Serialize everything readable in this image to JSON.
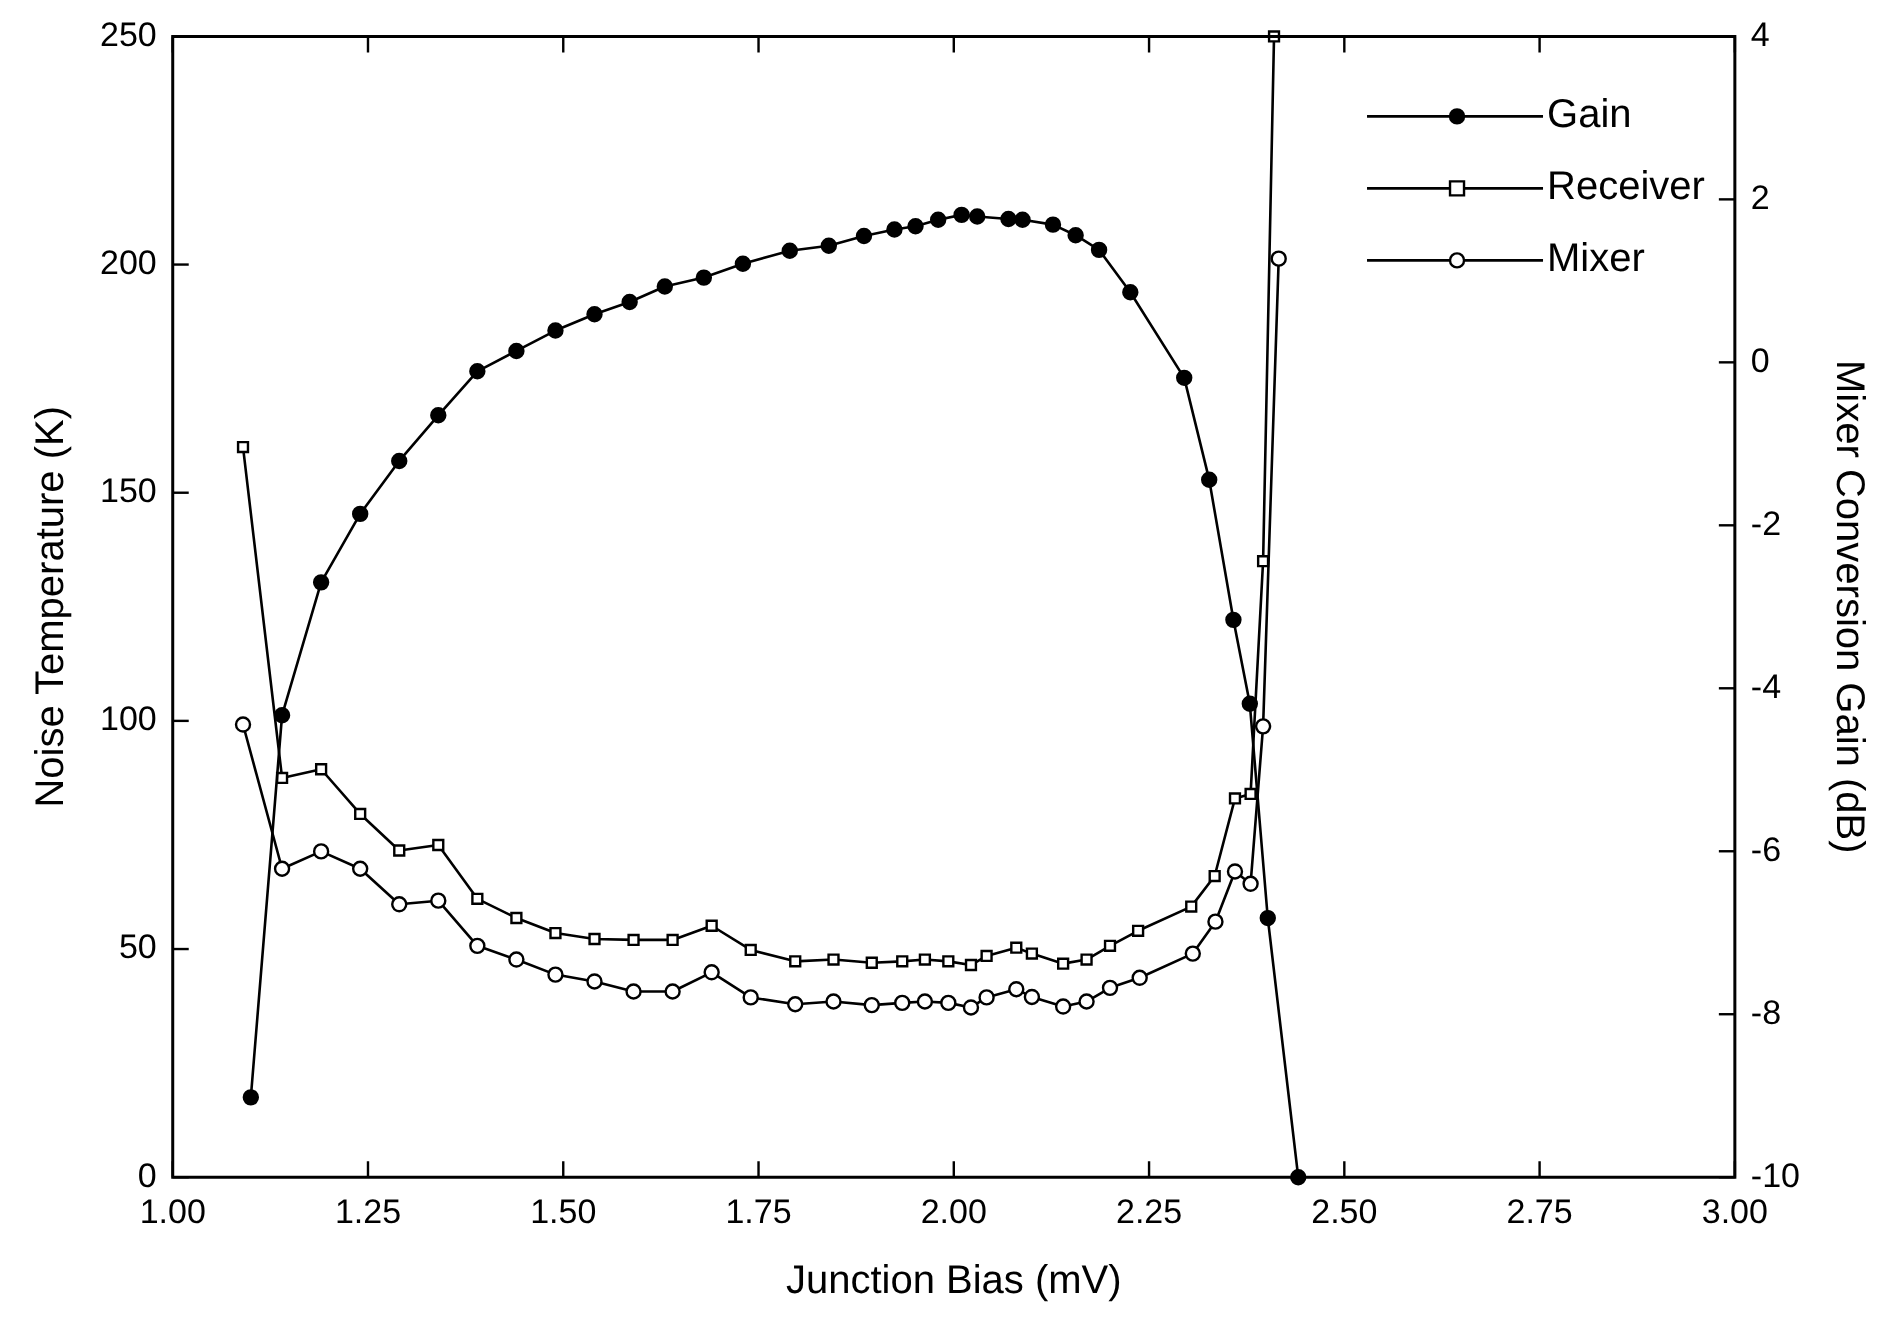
{
  "chart_data": {
    "type": "line",
    "xlabel": "Junction Bias (mV)",
    "ylabel": "Noise Temperature (K)",
    "y2label": "Mixer Conversion Gain (dB)",
    "xlim": [
      1.0,
      3.0
    ],
    "xticks": [
      {
        "value": 1.0,
        "label": "1.00"
      },
      {
        "value": 1.25,
        "label": "1.25"
      },
      {
        "value": 1.5,
        "label": "1.50"
      },
      {
        "value": 1.75,
        "label": "1.75"
      },
      {
        "value": 2.0,
        "label": "2.00"
      },
      {
        "value": 2.25,
        "label": "2.25"
      },
      {
        "value": 2.5,
        "label": "2.50"
      },
      {
        "value": 2.75,
        "label": "2.75"
      },
      {
        "value": 3.0,
        "label": "3.00"
      }
    ],
    "ylim": [
      0,
      250
    ],
    "yticks": [
      0,
      50,
      100,
      150,
      200,
      250
    ],
    "y2lim": [
      -10,
      4
    ],
    "y2ticks": [
      -10,
      -8,
      -6,
      -4,
      -2,
      0,
      2,
      4
    ],
    "grid": false,
    "legend": "top right",
    "line_style": "solid",
    "series": [
      {
        "name": "Gain",
        "color": "#000000",
        "axis": "y2",
        "marker": "circle",
        "x": [
          1.1,
          1.14,
          1.19,
          1.24,
          1.29,
          1.34,
          1.39,
          1.44,
          1.49,
          1.54,
          1.585,
          1.63,
          1.68,
          1.73,
          1.79,
          1.84,
          1.885,
          1.924,
          1.951,
          1.98,
          2.01,
          2.03,
          2.07,
          2.088,
          2.127,
          2.156,
          2.186,
          2.226,
          2.295,
          2.327,
          2.358,
          2.379,
          2.402,
          2.441
        ],
        "values": [
          -9.02,
          -4.33,
          -2.7,
          -1.86,
          -1.21,
          -0.65,
          -0.11,
          0.14,
          0.39,
          0.59,
          0.74,
          0.93,
          1.04,
          1.21,
          1.37,
          1.43,
          1.55,
          1.63,
          1.67,
          1.75,
          1.81,
          1.79,
          1.76,
          1.75,
          1.69,
          1.56,
          1.38,
          0.86,
          -0.19,
          -1.44,
          -3.16,
          -4.19,
          -6.82,
          -10
        ]
      },
      {
        "name": "Receiver",
        "color": "#000000",
        "marker": "square",
        "x": [
          1.09,
          1.14,
          1.19,
          1.24,
          1.29,
          1.34,
          1.39,
          1.44,
          1.49,
          1.54,
          1.59,
          1.64,
          1.69,
          1.74,
          1.797,
          1.846,
          1.895,
          1.934,
          1.963,
          1.993,
          2.022,
          2.042,
          2.08,
          2.1,
          2.14,
          2.17,
          2.2,
          2.236,
          2.304,
          2.334,
          2.36,
          2.38,
          2.396,
          2.41
        ],
        "values": [
          160,
          87.5,
          89.4,
          79.6,
          71.6,
          72.8,
          61,
          56.8,
          53.5,
          52.2,
          52,
          52,
          55.1,
          49.8,
          47.3,
          47.7,
          47,
          47.3,
          47.7,
          47.3,
          46.5,
          48.5,
          50.3,
          49,
          46.8,
          47.7,
          50.7,
          54,
          59.3,
          66,
          83,
          84,
          135,
          250
        ]
      },
      {
        "name": "Mixer",
        "color": "#000000",
        "marker": "circle",
        "x": [
          1.09,
          1.14,
          1.19,
          1.24,
          1.29,
          1.34,
          1.39,
          1.44,
          1.49,
          1.54,
          1.59,
          1.64,
          1.69,
          1.74,
          1.797,
          1.846,
          1.895,
          1.934,
          1.963,
          1.993,
          2.022,
          2.042,
          2.08,
          2.1,
          2.14,
          2.17,
          2.2,
          2.238,
          2.306,
          2.335,
          2.36,
          2.38,
          2.396,
          2.416
        ],
        "values": [
          99.2,
          67.6,
          71.4,
          67.6,
          59.8,
          60.6,
          50.7,
          47.7,
          44.4,
          42.9,
          40.7,
          40.7,
          44.9,
          39.4,
          37.9,
          38.5,
          37.7,
          38.2,
          38.5,
          38.2,
          37.2,
          39.4,
          41.2,
          39.5,
          37.4,
          38.5,
          41.5,
          43.7,
          49,
          56,
          67,
          64.3,
          98.8,
          201.3
        ]
      }
    ]
  }
}
